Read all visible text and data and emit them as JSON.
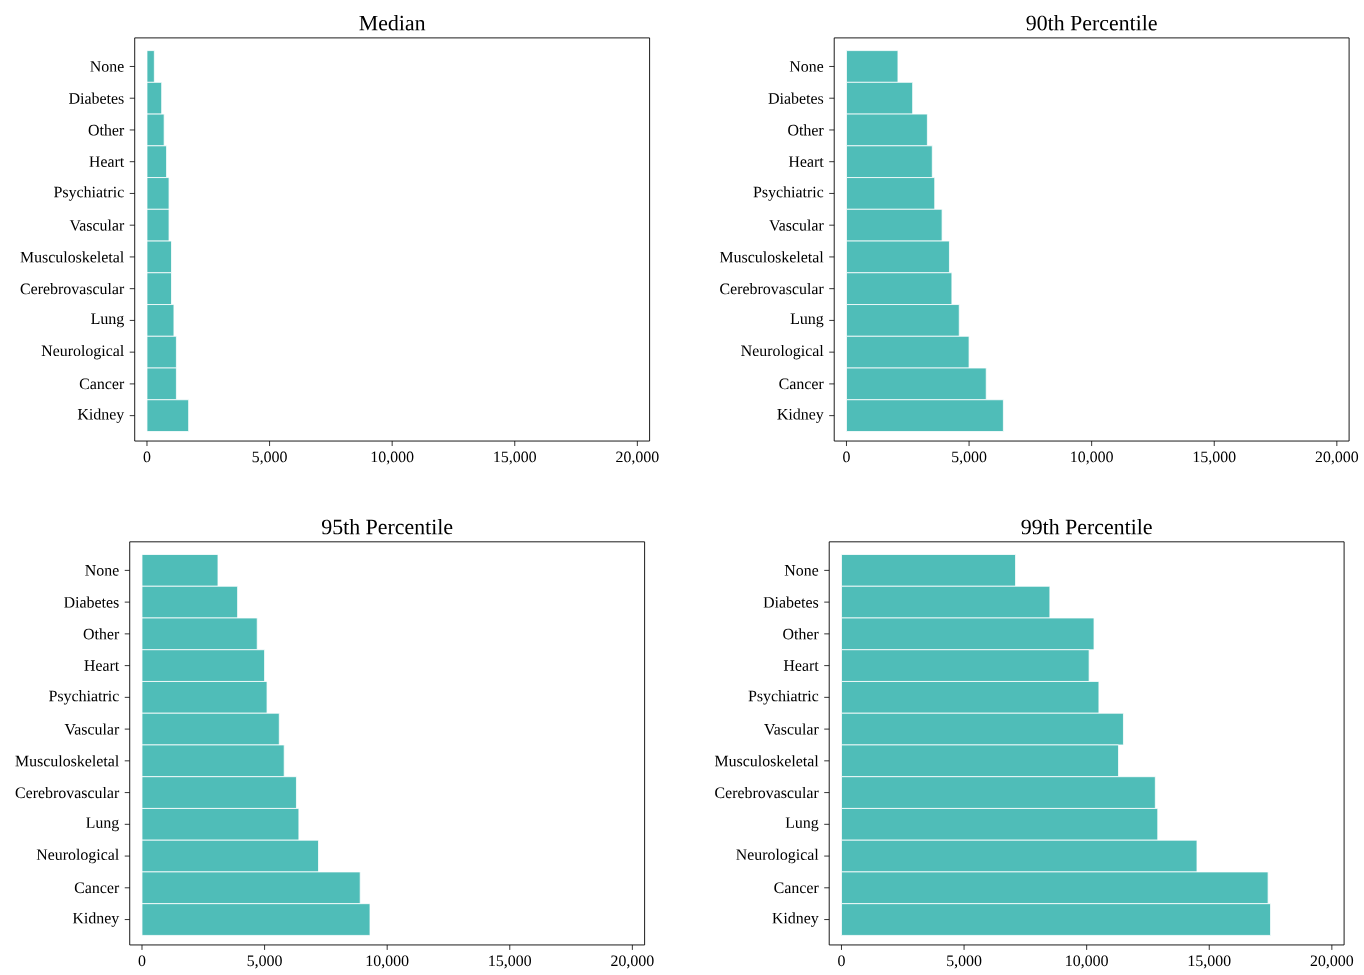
{
  "chart_data": [
    {
      "type": "bar",
      "orientation": "horizontal",
      "title": "Median",
      "color": "#4fbdb8",
      "categories": [
        "None",
        "Diabetes",
        "Other",
        "Heart",
        "Psychiatric",
        "Vascular",
        "Musculoskeletal",
        "Cerebrovascular",
        "Lung",
        "Neurological",
        "Cancer",
        "Kidney"
      ],
      "values": [
        300,
        600,
        700,
        800,
        900,
        900,
        1000,
        1000,
        1100,
        1200,
        1200,
        1700
      ],
      "xlim": [
        -500,
        20500
      ],
      "xticks": [
        0,
        {
          "value": 5000,
          "label": "5,000"
        },
        {
          "value": 10000,
          "label": "10,000"
        },
        {
          "value": 15000,
          "label": "15,000"
        },
        {
          "value": 20000,
          "label": "20,000"
        }
      ]
    },
    {
      "type": "bar",
      "orientation": "horizontal",
      "title": "90th Percentile",
      "color": "#4fbdb8",
      "categories": [
        "None",
        "Diabetes",
        "Other",
        "Heart",
        "Psychiatric",
        "Vascular",
        "Musculoskeletal",
        "Cerebrovascular",
        "Lung",
        "Neurological",
        "Cancer",
        "Kidney"
      ],
      "values": [
        2100,
        2700,
        3300,
        3500,
        3600,
        3900,
        4200,
        4300,
        4600,
        5000,
        5700,
        6400
      ],
      "xlim": [
        -500,
        20500
      ],
      "xticks": [
        0,
        {
          "value": 5000,
          "label": "5,000"
        },
        {
          "value": 10000,
          "label": "10,000"
        },
        {
          "value": 15000,
          "label": "15,000"
        },
        {
          "value": 20000,
          "label": "20,000"
        }
      ]
    },
    {
      "type": "bar",
      "orientation": "horizontal",
      "title": "95th Percentile",
      "color": "#4fbdb8",
      "categories": [
        "None",
        "Diabetes",
        "Other",
        "Heart",
        "Psychiatric",
        "Vascular",
        "Musculoskeletal",
        "Cerebrovascular",
        "Lung",
        "Neurological",
        "Cancer",
        "Kidney"
      ],
      "values": [
        3100,
        3900,
        4700,
        5000,
        5100,
        5600,
        5800,
        6300,
        6400,
        7200,
        8900,
        9300
      ],
      "xlim": [
        -500,
        20500
      ],
      "xticks": [
        0,
        {
          "value": 5000,
          "label": "5,000"
        },
        {
          "value": 10000,
          "label": "10,000"
        },
        {
          "value": 15000,
          "label": "15,000"
        },
        {
          "value": 20000,
          "label": "20,000"
        }
      ]
    },
    {
      "type": "bar",
      "orientation": "horizontal",
      "title": "99th Percentile",
      "color": "#4fbdb8",
      "categories": [
        "None",
        "Diabetes",
        "Other",
        "Heart",
        "Psychiatric",
        "Vascular",
        "Musculoskeletal",
        "Cerebrovascular",
        "Lung",
        "Neurological",
        "Cancer",
        "Kidney"
      ],
      "values": [
        7100,
        8500,
        10300,
        10100,
        10500,
        11500,
        11300,
        12800,
        12900,
        14500,
        17400,
        17500
      ],
      "xlim": [
        -500,
        20500
      ],
      "xticks": [
        0,
        {
          "value": 5000,
          "label": "5,000"
        },
        {
          "value": 10000,
          "label": "10,000"
        },
        {
          "value": 15000,
          "label": "15,000"
        },
        {
          "value": 20000,
          "label": "20,000"
        }
      ]
    }
  ]
}
